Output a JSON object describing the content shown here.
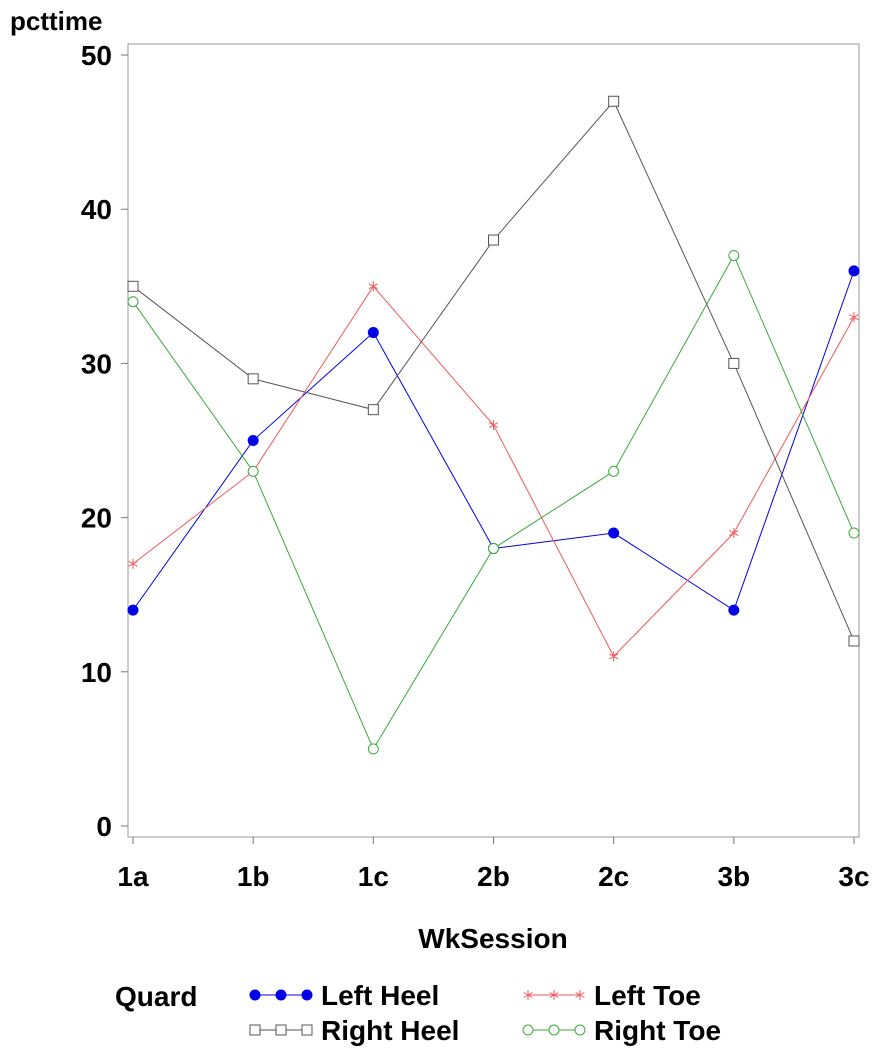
{
  "chart_data": {
    "type": "line",
    "ylabel": "pcttime",
    "xlabel": "WkSession",
    "categories": [
      "1a",
      "1b",
      "1c",
      "2b",
      "2c",
      "3b",
      "3c"
    ],
    "ylim": [
      0,
      50
    ],
    "yticks": [
      0,
      10,
      20,
      30,
      40,
      50
    ],
    "grid": false,
    "legend": {
      "title": "Quard",
      "placement": "bottom"
    },
    "series": [
      {
        "name": "Left Heel",
        "values": [
          14,
          25,
          32,
          18,
          19,
          14,
          36
        ],
        "color": "#0000e6",
        "marker": "filled-circle"
      },
      {
        "name": "Left Toe",
        "values": [
          17,
          23,
          35,
          26,
          11,
          19,
          33
        ],
        "color": "#ef5a5a",
        "marker": "asterisk"
      },
      {
        "name": "Right Heel",
        "values": [
          35,
          29,
          27,
          38,
          47,
          30,
          12
        ],
        "color": "#555555",
        "marker": "open-square"
      },
      {
        "name": "Right Toe",
        "values": [
          34,
          23,
          5,
          18,
          23,
          37,
          19
        ],
        "color": "#3aaa3a",
        "marker": "open-circle"
      }
    ]
  }
}
